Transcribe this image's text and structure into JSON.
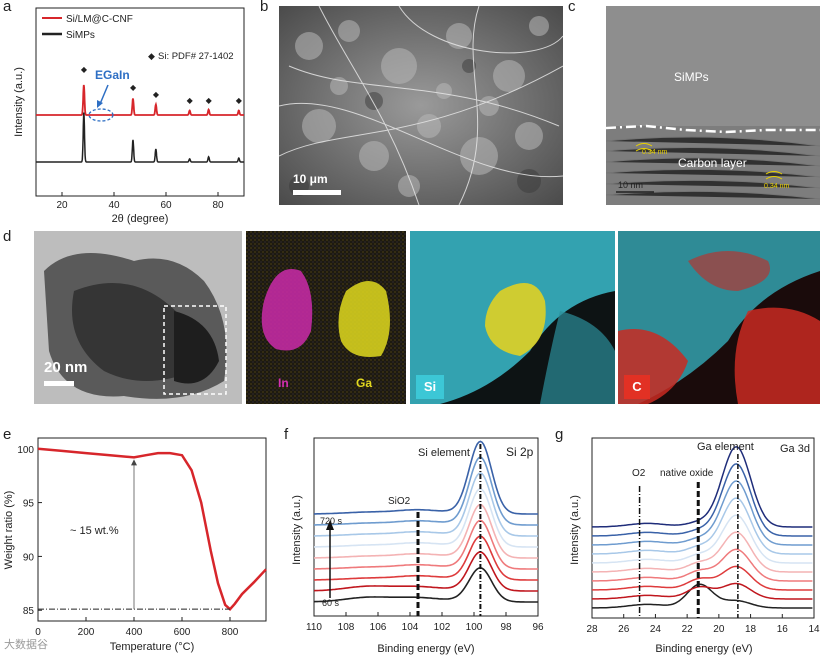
{
  "panels": {
    "a": {
      "label": "a",
      "legend": [
        "Si/LM@C-CNF",
        "SiMPs"
      ],
      "pdf_note": "Si: PDF# 27-1402",
      "annotation": "EGaIn",
      "xlabel": "2θ (degree)",
      "ylabel": "Intensity (a.u.)",
      "xticks": [
        "20",
        "40",
        "60",
        "80"
      ],
      "colors": {
        "red": "#d7262b",
        "black": "#222222",
        "annot": "#2e6fc4"
      }
    },
    "b": {
      "label": "b",
      "scalebar": "10 μm"
    },
    "c": {
      "label": "c",
      "region_top": "SiMPs",
      "region_bottom": "Carbon layer",
      "d_spacing_1": "0.34 nm",
      "d_spacing_2": "0.34 nm",
      "scalebar": "10 nm"
    },
    "d": {
      "label": "d",
      "scalebar": "20 nm",
      "maps": [
        "In",
        "Ga",
        "Si",
        "C"
      ],
      "map_colors": {
        "In": "#d52fb1",
        "Ga": "#e2d81f",
        "Si": "#3cc7d6",
        "C": "#e23124"
      }
    },
    "e": {
      "label": "e",
      "xlabel": "Temperature (°C)",
      "ylabel": "Weight ratio (%)",
      "annotation": "~ 15 wt.%",
      "xticks": [
        "0",
        "200",
        "400",
        "600",
        "800"
      ],
      "yticks": [
        "85",
        "90",
        "95",
        "100"
      ]
    },
    "f": {
      "label": "f",
      "title": "Si 2p",
      "xlabel": "Binding energy (eV)",
      "ylabel": "Intensity (a.u.)",
      "peak_label": "Si element",
      "oxide_label": "SiO2",
      "time_top": "720 s",
      "time_bottom": "60 s",
      "xticks": [
        "110",
        "108",
        "106",
        "104",
        "102",
        "100",
        "98",
        "96"
      ]
    },
    "g": {
      "label": "g",
      "title": "Ga 3d",
      "xlabel": "Binding energy (eV)",
      "ylabel": "Intensity (a.u.)",
      "peak_label": "Ga element",
      "oxide_label": "native oxide",
      "o2_label": "O2",
      "xticks": [
        "28",
        "26",
        "24",
        "22",
        "20",
        "18",
        "16",
        "14"
      ]
    }
  },
  "watermark": "大数据谷",
  "chart_data": [
    {
      "id": "a",
      "type": "line",
      "title": "",
      "xlabel": "2θ (degree)",
      "ylabel": "Intensity (a.u.)",
      "xlim": [
        10,
        90
      ],
      "series": [
        {
          "name": "Si/LM@C-CNF",
          "color": "#d7262b",
          "peaks_2theta": [
            28.4,
            47.3,
            56.1,
            69.1,
            76.4,
            88.0
          ],
          "peak_heights": [
            1.0,
            0.55,
            0.35,
            0.15,
            0.18,
            0.15
          ],
          "baseline": 0.62
        },
        {
          "name": "SiMPs",
          "color": "#222222",
          "peaks_2theta": [
            28.4,
            47.3,
            56.1,
            69.1,
            76.4,
            88.0
          ],
          "peak_heights": [
            1.9,
            0.85,
            0.5,
            0.12,
            0.2,
            0.15
          ],
          "baseline": 0.0
        }
      ],
      "markers_2theta": [
        28.4,
        47.3,
        56.1,
        69.1,
        76.4,
        88.0
      ],
      "annotations": [
        {
          "text": "EGaIn",
          "x": 38
        }
      ]
    },
    {
      "id": "e",
      "type": "line",
      "title": "",
      "xlabel": "Temperature (°C)",
      "ylabel": "Weight ratio (%)",
      "xlim": [
        0,
        950
      ],
      "ylim": [
        84,
        101
      ],
      "x": [
        0,
        100,
        200,
        300,
        400,
        450,
        500,
        550,
        600,
        640,
        680,
        720,
        750,
        780,
        800,
        820,
        850,
        900,
        950
      ],
      "y": [
        100.0,
        99.8,
        99.6,
        99.4,
        99.2,
        99.4,
        99.6,
        99.6,
        99.4,
        98.0,
        95.0,
        90.5,
        87.5,
        85.5,
        85.1,
        85.6,
        86.5,
        87.6,
        88.8
      ],
      "color": "#d7262b",
      "annotations": [
        {
          "text": "~ 15 wt.%",
          "x": 400
        }
      ],
      "reference_line_y": 85.1
    },
    {
      "id": "f",
      "type": "line",
      "title": "Si 2p",
      "xlabel": "Binding energy (eV)",
      "ylabel": "Intensity (a.u.)",
      "xlim": [
        110,
        96
      ],
      "reversed_x": true,
      "series_count": 9,
      "time_range": [
        "60 s",
        "720 s"
      ],
      "peak_positions_eV": {
        "Si element": 99.6,
        "SiO2": 103.5
      },
      "series_colors": [
        "#222222",
        "#c0171e",
        "#de3b3c",
        "#ef7a7c",
        "#f4b3b4",
        "#d6e4f3",
        "#a8c8e8",
        "#6f9ccf",
        "#3a62a8",
        "#1f2d7a"
      ]
    },
    {
      "id": "g",
      "type": "line",
      "title": "Ga 3d",
      "xlabel": "Binding energy (eV)",
      "ylabel": "Intensity (a.u.)",
      "xlim": [
        28,
        14
      ],
      "reversed_x": true,
      "series_count": 10,
      "peak_positions_eV": {
        "Ga element": 18.8,
        "native oxide": 21.3,
        "O2": 25.0
      },
      "series_colors": [
        "#222222",
        "#c0171e",
        "#de3b3c",
        "#ef7a7c",
        "#f4b3b4",
        "#d6e4f3",
        "#a8c8e8",
        "#6f9ccf",
        "#3a62a8",
        "#1f2d7a"
      ]
    }
  ]
}
